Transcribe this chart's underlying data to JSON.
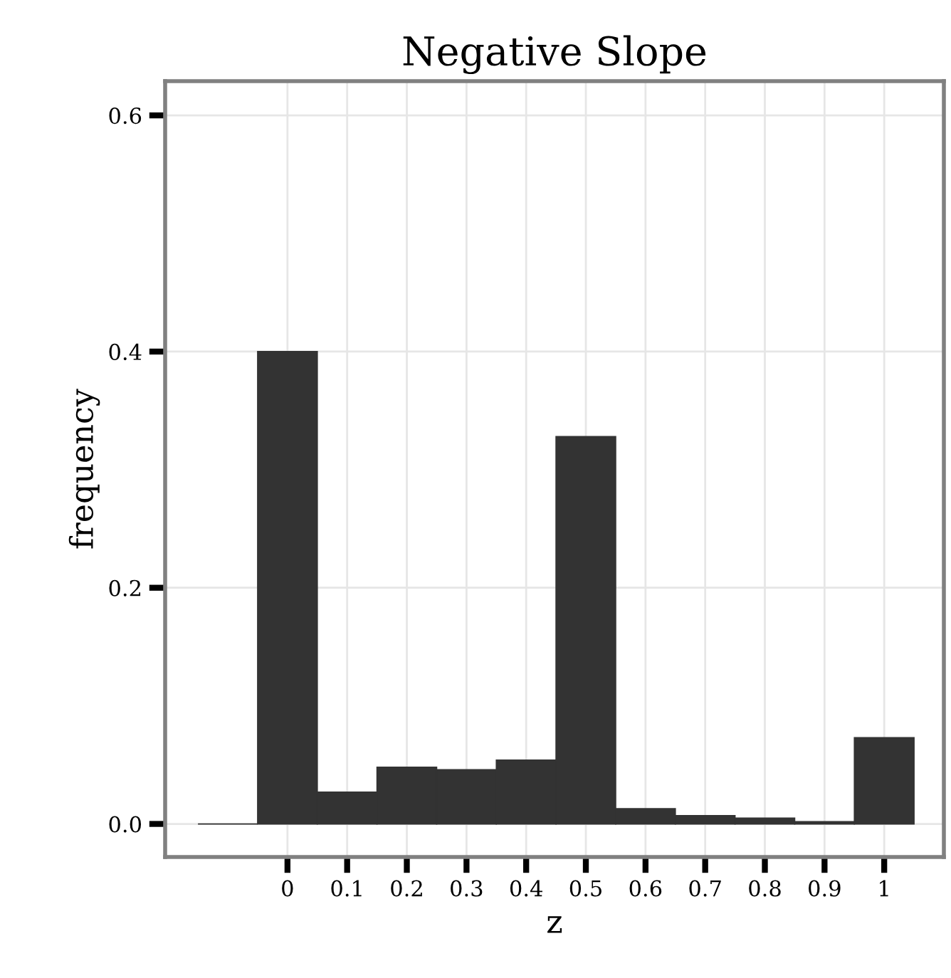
{
  "chart_data": {
    "type": "histogram",
    "title": "Negative Slope",
    "xlabel": "z",
    "ylabel": "frequency",
    "bins": [
      -0.15,
      -0.05,
      0.05,
      0.15,
      0.25,
      0.35,
      0.45,
      0.55,
      0.65,
      0.75,
      0.85,
      0.95,
      1.05
    ],
    "values": [
      0,
      0.4,
      0.027,
      0.048,
      0.046,
      0.054,
      0.328,
      0.013,
      0.007,
      0.005,
      0.002,
      0.073
    ],
    "color": "#333333",
    "xlim": [
      -0.205,
      1.1
    ],
    "ylim": [
      -0.028,
      0.629
    ],
    "xticks": [
      0,
      0.1,
      0.2,
      0.3,
      0.4,
      0.5,
      0.6,
      0.7,
      0.8,
      0.9,
      1
    ],
    "yticks": [
      {
        "value": 0,
        "label": "0.0"
      },
      0.2,
      0.4,
      0.6
    ],
    "grid": true
  }
}
